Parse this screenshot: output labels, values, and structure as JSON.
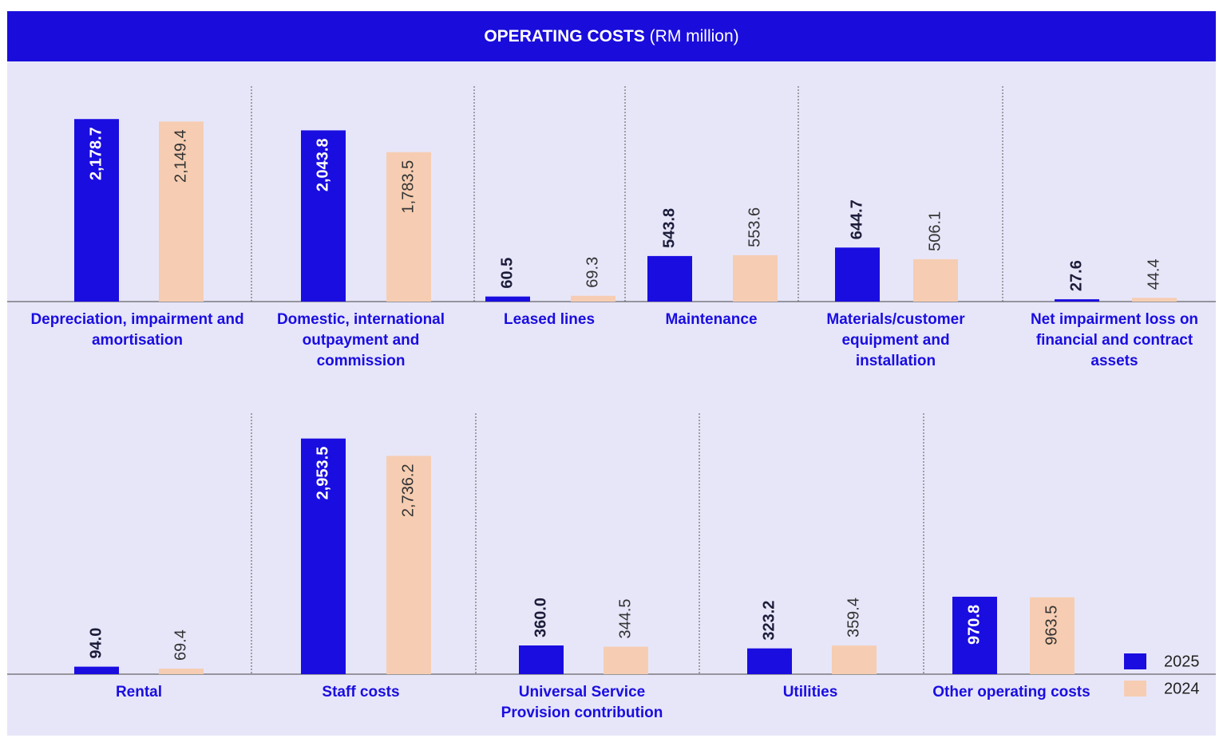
{
  "title": {
    "bold": "OPERATING COSTS",
    "rest": "(RM million)"
  },
  "chart_data": [
    {
      "type": "bar",
      "categories": [
        "Depreciation, impairment and amortisation",
        "Domestic, international outpayment and commission",
        "Leased lines",
        "Maintenance",
        "Materials/customer equipment and installation",
        "Net impairment loss on financial and contract assets"
      ],
      "series": [
        {
          "color": "#1a0de0",
          "values": [
            2178.7,
            2043.8,
            60.5,
            543.8,
            644.7,
            27.6
          ],
          "value_labels": [
            "2,178.7",
            "2,043.8",
            "60.5",
            "543.8",
            "644.7",
            "27.6"
          ]
        },
        {
          "color": "#f6cdb2",
          "values": [
            2149.4,
            1783.5,
            69.3,
            553.6,
            506.1,
            44.4
          ],
          "value_labels": [
            "2,149.4",
            "1,783.5",
            "69.3",
            "553.6",
            "506.1",
            "44.4"
          ]
        }
      ]
    },
    {
      "type": "bar",
      "categories": [
        "Rental",
        "Staff costs",
        "Universal Service Provision contribution",
        "Utilities",
        "Other operating costs"
      ],
      "series": [
        {
          "name": "2025",
          "color": "#1a0de0",
          "values": [
            94.0,
            2953.5,
            360.0,
            323.2,
            970.8
          ],
          "value_labels": [
            "94.0",
            "2,953.5",
            "360.0",
            "323.2",
            "970.8"
          ]
        },
        {
          "name": "2024",
          "color": "#f6cdb2",
          "values": [
            69.4,
            2736.2,
            344.5,
            359.4,
            963.5
          ],
          "value_labels": [
            "69.4",
            "2,736.2",
            "344.5",
            "359.4",
            "963.5"
          ]
        }
      ],
      "legend": "lower right"
    }
  ]
}
